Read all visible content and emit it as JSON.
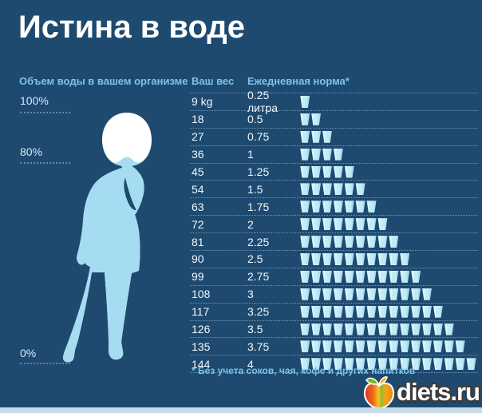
{
  "title": "Истина в воде",
  "left_panel": {
    "heading": "Объем воды в вашем организме",
    "scale": {
      "top": "100%",
      "middle": "80%",
      "bottom": "0%"
    }
  },
  "table": {
    "headers": {
      "weight": "Ваш вес",
      "norm": "Ежедневная норма*"
    },
    "rows": [
      {
        "weight": "9 kg",
        "norm": "0.25 литра",
        "cups": 1
      },
      {
        "weight": "18",
        "norm": "0.5",
        "cups": 2
      },
      {
        "weight": "27",
        "norm": "0.75",
        "cups": 3
      },
      {
        "weight": "36",
        "norm": "1",
        "cups": 4
      },
      {
        "weight": "45",
        "norm": "1.25",
        "cups": 5
      },
      {
        "weight": "54",
        "norm": "1.5",
        "cups": 6
      },
      {
        "weight": "63",
        "norm": "1.75",
        "cups": 7
      },
      {
        "weight": "72",
        "norm": "2",
        "cups": 8
      },
      {
        "weight": "81",
        "norm": "2.25",
        "cups": 9
      },
      {
        "weight": "90",
        "norm": "2.5",
        "cups": 10
      },
      {
        "weight": "99",
        "norm": "2.75",
        "cups": 11
      },
      {
        "weight": "108",
        "norm": "3",
        "cups": 12
      },
      {
        "weight": "117",
        "norm": "3.25",
        "cups": 13
      },
      {
        "weight": "126",
        "norm": "3.5",
        "cups": 14
      },
      {
        "weight": "135",
        "norm": "3.75",
        "cups": 15
      },
      {
        "weight": "144",
        "norm": "4",
        "cups": 16
      }
    ]
  },
  "footnote": "* Без учета соков, чая, кофе и других напитков",
  "logo": {
    "text": "diets.ru"
  },
  "colors": {
    "background": "#1e4a70",
    "accent_text": "#7cc3e8",
    "white_text": "#ffffff",
    "cup": "#c3ebf7",
    "body_water": "#a6dcf2",
    "body_dry": "#ffffff",
    "bottom_strip": "#c9dae9",
    "apple_red": "#dc2f1d",
    "apple_orange": "#ef8412",
    "leaf_green": "#76b82a"
  },
  "chart_data": {
    "type": "table",
    "title": "Истина в воде",
    "left_chart_label": "Объем воды в вашем организме",
    "columns": [
      "Ваш вес",
      "Ежедневная норма*"
    ],
    "weights_kg": [
      9,
      18,
      27,
      36,
      45,
      54,
      63,
      72,
      81,
      90,
      99,
      108,
      117,
      126,
      135,
      144
    ],
    "daily_norm_liters": [
      0.25,
      0.5,
      0.75,
      1,
      1.25,
      1.5,
      1.75,
      2,
      2.25,
      2.5,
      2.75,
      3,
      3.25,
      3.5,
      3.75,
      4
    ],
    "cup_icons_per_row": [
      1,
      2,
      3,
      4,
      5,
      6,
      7,
      8,
      9,
      10,
      11,
      12,
      13,
      14,
      15,
      16
    ],
    "body_water_scale_percent": [
      100,
      80,
      0
    ],
    "body_water_fill_shown_percent": 80,
    "footnote": "* Без учета соков, чая, кофе и других напитков",
    "legend_position": "none",
    "grid": "dotted row separators"
  }
}
